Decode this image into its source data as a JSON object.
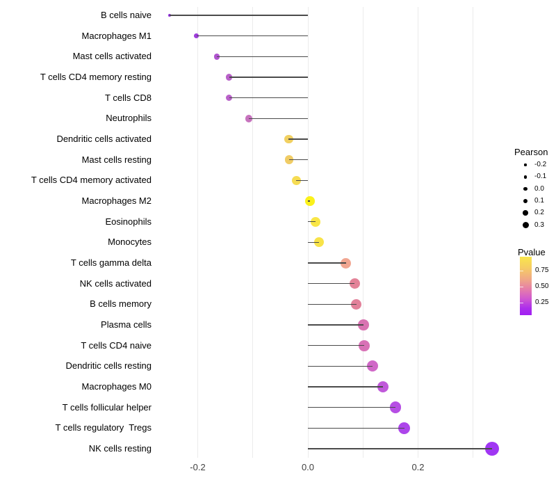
{
  "chart_data": {
    "type": "scatter",
    "variant": "lollipop",
    "title": "",
    "xlabel": "",
    "ylabel": "",
    "grid": "vertical-only",
    "xlim": [
      -0.29,
      0.38
    ],
    "x_gridlines": [
      -0.2,
      -0.1,
      0.0,
      0.1,
      0.2,
      0.3
    ],
    "x_ticks": [
      {
        "value": -0.2,
        "label": "-0.2"
      },
      {
        "value": 0.0,
        "label": "0.0"
      },
      {
        "value": 0.2,
        "label": "0.2"
      }
    ],
    "rows": [
      {
        "label": "B cells naive",
        "pearson": -0.251,
        "pvalue": 0.03,
        "color": "#8e24e0"
      },
      {
        "label": "Macrophages M1",
        "pearson": -0.202,
        "pvalue": 0.1,
        "color": "#9933d9"
      },
      {
        "label": "Mast cells activated",
        "pearson": -0.165,
        "pvalue": 0.17,
        "color": "#ac4ccc"
      },
      {
        "label": "T cells CD4 memory resting",
        "pearson": -0.143,
        "pvalue": 0.2,
        "color": "#b558c6"
      },
      {
        "label": "T cells CD8",
        "pearson": -0.143,
        "pvalue": 0.2,
        "color": "#b558c6"
      },
      {
        "label": "Neutrophils",
        "pearson": -0.107,
        "pvalue": 0.28,
        "color": "#c46cbb"
      },
      {
        "label": "Dendritic cells activated",
        "pearson": -0.035,
        "pvalue": 0.78,
        "color": "#f0ce58"
      },
      {
        "label": "Mast cells resting",
        "pearson": -0.034,
        "pvalue": 0.76,
        "color": "#efc95d"
      },
      {
        "label": "T cells CD4 memory activated",
        "pearson": -0.021,
        "pvalue": 0.82,
        "color": "#f5da4a"
      },
      {
        "label": "Macrophages M2",
        "pearson": 0.004,
        "pvalue": 0.97,
        "color": "#fbf00f"
      },
      {
        "label": "Eosinophils",
        "pearson": 0.014,
        "pvalue": 0.9,
        "color": "#f9e53c"
      },
      {
        "label": "Monocytes",
        "pearson": 0.02,
        "pvalue": 0.88,
        "color": "#f8e13f"
      },
      {
        "label": "T cells gamma delta",
        "pearson": 0.069,
        "pvalue": 0.6,
        "color": "#f0a18b"
      },
      {
        "label": "NK cells activated",
        "pearson": 0.085,
        "pvalue": 0.47,
        "color": "#e17c92"
      },
      {
        "label": "B cells memory",
        "pearson": 0.088,
        "pvalue": 0.46,
        "color": "#e07a95"
      },
      {
        "label": "Plasma cells",
        "pearson": 0.101,
        "pvalue": 0.38,
        "color": "#d76bae"
      },
      {
        "label": "T cells CD4 naive",
        "pearson": 0.102,
        "pvalue": 0.38,
        "color": "#d66ab2"
      },
      {
        "label": "Dendritic cells resting",
        "pearson": 0.117,
        "pvalue": 0.32,
        "color": "#cd60c4"
      },
      {
        "label": "Macrophages M0",
        "pearson": 0.136,
        "pvalue": 0.26,
        "color": "#bd50d8"
      },
      {
        "label": "T cells follicular helper",
        "pearson": 0.159,
        "pvalue": 0.2,
        "color": "#b245e3"
      },
      {
        "label": "T cells regulatory  Tregs",
        "pearson": 0.175,
        "pvalue": 0.16,
        "color": "#a93bea"
      },
      {
        "label": "NK cells resting",
        "pearson": 0.334,
        "pvalue": 0.05,
        "color": "#9b2bf2"
      }
    ],
    "legends": {
      "size": {
        "title": "Pearson",
        "entries": [
          {
            "value": -0.2,
            "label": "-0.2"
          },
          {
            "value": -0.1,
            "label": "-0.1"
          },
          {
            "value": 0.0,
            "label": "0.0"
          },
          {
            "value": 0.1,
            "label": "0.1"
          },
          {
            "value": 0.2,
            "label": "0.2"
          },
          {
            "value": 0.3,
            "label": "0.3"
          }
        ],
        "dot_color": "#000000"
      },
      "color": {
        "title": "Pvalue",
        "ticks": [
          {
            "value": 0.75,
            "label": "0.75"
          },
          {
            "value": 0.5,
            "label": "0.50"
          },
          {
            "value": 0.25,
            "label": "0.25"
          }
        ],
        "gradient_top_color": "#f9e64b",
        "gradient_bottom_color": "#a01ff2"
      }
    },
    "colors": {
      "stem": "#4a4a4a",
      "gridline": "#ebebeb",
      "axis_text": "#404040",
      "label_text": "#000000",
      "background": "#ffffff"
    }
  }
}
